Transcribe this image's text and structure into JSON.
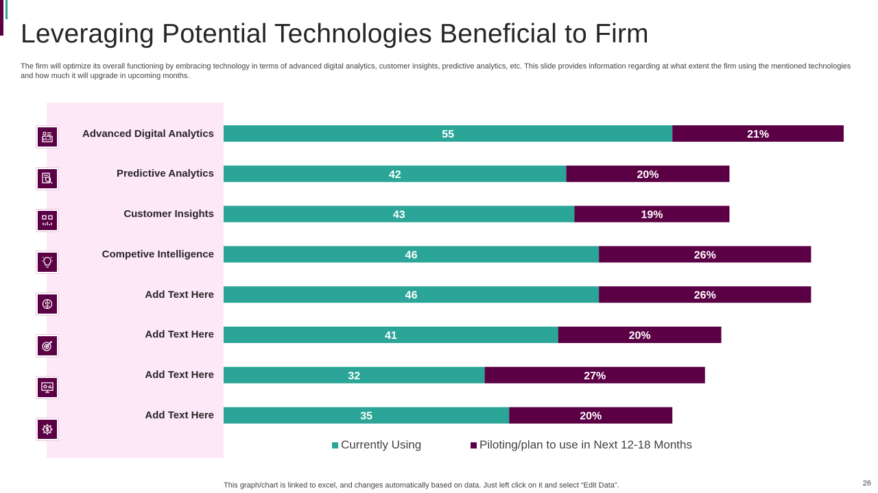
{
  "slide": {
    "title": "Leveraging Potential Technologies Beneficial to Firm",
    "subtitle": "The firm will optimize its overall functioning by embracing technology in terms of advanced digital analytics, customer insights, predictive analytics, etc. This slide provides information regarding at what extent the firm using the mentioned technologies and how much it will upgrade in upcoming months.",
    "footer_note": "This graph/chart is linked to excel, and changes automatically based on data. Just left click on it and select “Edit Data”.",
    "page_number": "26"
  },
  "colors": {
    "teal": "#2aa597",
    "purple": "#5c0045",
    "panel": "#fde8f8"
  },
  "icons": [
    "analytics-dashboard-icon",
    "magnifier-report-icon",
    "qr-chart-icon",
    "lightbulb-gear-icon",
    "brain-icon",
    "target-icon",
    "monitor-chart-icon",
    "dollar-gear-icon"
  ],
  "chart_data": {
    "type": "bar",
    "orientation": "horizontal",
    "stacked": true,
    "categories": [
      "Advanced Digital Analytics",
      "Predictive Analytics",
      "Customer Insights",
      "Competive Intelligence",
      "Add Text Here",
      "Add Text Here",
      "Add Text Here",
      "Add Text Here"
    ],
    "series": [
      {
        "name": "Currently Using",
        "values": [
          55,
          42,
          43,
          46,
          46,
          41,
          32,
          35
        ],
        "labels": [
          "55",
          "42",
          "43",
          "46",
          "46",
          "41",
          "32",
          "35"
        ]
      },
      {
        "name": "Piloting/plan to use in Next 12-18 Months",
        "values": [
          21,
          20,
          19,
          26,
          26,
          20,
          27,
          20
        ],
        "labels": [
          "21%",
          "20%",
          "19%",
          "26%",
          "26%",
          "20%",
          "27%",
          "20%"
        ]
      }
    ],
    "xlim": [
      0,
      76
    ],
    "grid": false,
    "legend_position": "bottom"
  }
}
